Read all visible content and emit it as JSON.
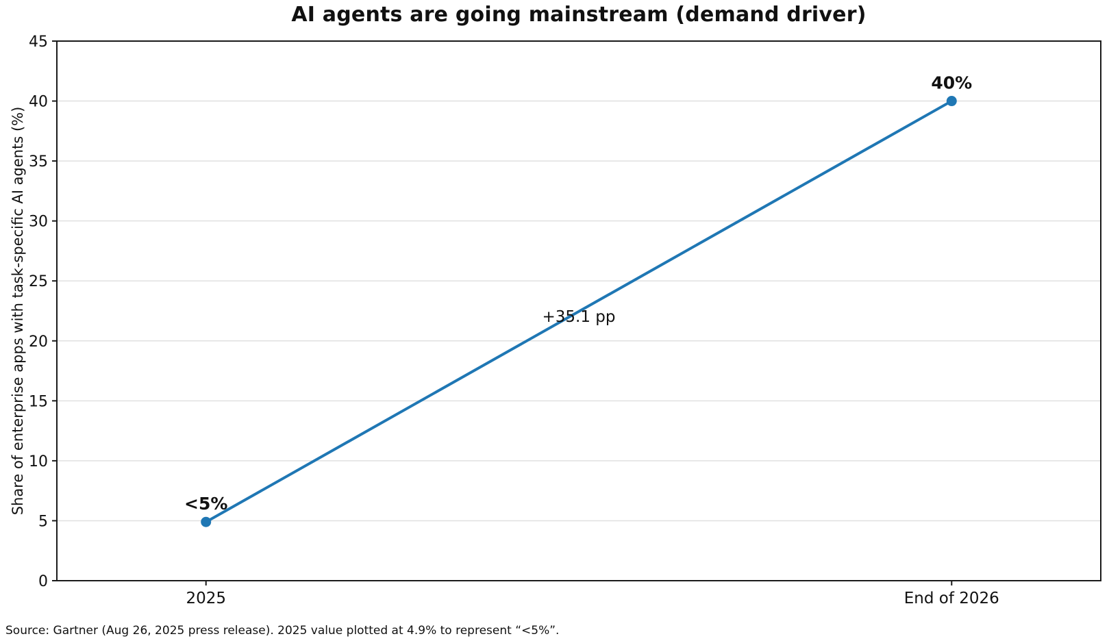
{
  "chart_data": {
    "type": "line",
    "title": "AI agents are going mainstream (demand driver)",
    "ylabel": "Share of enterprise apps with task-specific AI agents (%)",
    "xlabel": "",
    "categories": [
      "2025",
      "End of 2026"
    ],
    "x": [
      0,
      1
    ],
    "values": [
      4.9,
      40
    ],
    "point_labels": [
      "<5%",
      "40%"
    ],
    "midpoint_annotation": "+35.1 pp",
    "ylim": [
      0,
      45
    ],
    "xlim": [
      -0.2,
      1.2
    ],
    "yticks": [
      0,
      5,
      10,
      15,
      20,
      25,
      30,
      35,
      40,
      45
    ],
    "grid": "horizontal",
    "legend": "none",
    "line_color": "#1f77b4",
    "marker_color": "#1f77b4",
    "grid_color": "#e0e0e0",
    "spine_color": "#1a1a1a",
    "text_color": "#111111"
  },
  "source_note": "Source: Gartner (Aug 26, 2025 press release). 2025 value plotted at 4.9% to represent “<5%”."
}
